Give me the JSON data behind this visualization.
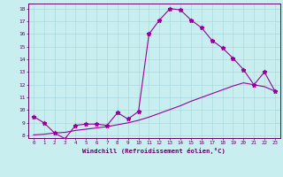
{
  "xlabel": "Windchill (Refroidissement éolien,°C)",
  "bg_color": "#c8eef0",
  "line_color": "#990099",
  "grid_color": "#aad8dc",
  "axis_color": "#660066",
  "text_color": "#660066",
  "xlim": [
    -0.5,
    23.5
  ],
  "ylim": [
    7.8,
    18.4
  ],
  "xticks": [
    0,
    1,
    2,
    3,
    4,
    5,
    6,
    7,
    8,
    9,
    10,
    11,
    12,
    13,
    14,
    15,
    16,
    17,
    18,
    19,
    20,
    21,
    22,
    23
  ],
  "yticks": [
    8,
    9,
    10,
    11,
    12,
    13,
    14,
    15,
    16,
    17,
    18
  ],
  "line1_x": [
    0,
    1,
    2,
    3,
    4,
    5,
    6,
    7,
    8,
    9,
    10,
    11,
    12,
    13,
    14,
    15,
    16,
    17,
    18,
    19,
    20,
    21,
    22,
    23
  ],
  "line1_y": [
    9.5,
    9.0,
    8.2,
    7.75,
    8.8,
    8.9,
    8.9,
    8.8,
    9.8,
    9.3,
    9.9,
    16.0,
    17.1,
    18.0,
    17.9,
    17.1,
    16.5,
    15.5,
    14.9,
    14.1,
    13.2,
    12.0,
    13.0,
    11.5
  ],
  "line2_x": [
    0,
    1,
    2,
    3,
    4,
    5,
    6,
    7,
    8,
    9,
    10,
    11,
    12,
    13,
    14,
    15,
    16,
    17,
    18,
    19,
    20,
    21,
    22,
    23
  ],
  "line2_y": [
    8.05,
    8.1,
    8.2,
    8.25,
    8.4,
    8.5,
    8.6,
    8.7,
    8.85,
    9.0,
    9.2,
    9.45,
    9.75,
    10.05,
    10.35,
    10.7,
    11.0,
    11.3,
    11.6,
    11.9,
    12.15,
    12.0,
    11.85,
    11.5
  ]
}
